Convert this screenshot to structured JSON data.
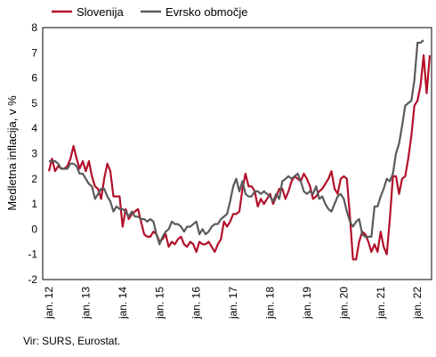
{
  "source_note": "Vir: SURS, Eurostat.",
  "chart_data": {
    "type": "line",
    "title": "",
    "xlabel": "",
    "ylabel": "Medletna inflacija, v %",
    "ylim": [
      -2,
      8
    ],
    "yticks": [
      -2,
      -1,
      0,
      1,
      2,
      3,
      4,
      5,
      6,
      7,
      8
    ],
    "x_tick_labels": [
      "jan. 12",
      "jan. 13",
      "jan. 14",
      "jan. 15",
      "jan. 16",
      "jan. 17",
      "jan. 18",
      "jan. 19",
      "jan. 20",
      "jan. 21",
      "jan. 22"
    ],
    "x_start": "2012-01",
    "x_end": "2022-06",
    "grid": false,
    "legend_position": "top-left",
    "series": [
      {
        "name": "Slovenija",
        "color": "#B3102A",
        "values": [
          2.3,
          2.8,
          2.3,
          2.5,
          2.4,
          2.4,
          2.5,
          2.8,
          3.3,
          2.8,
          2.4,
          2.7,
          2.3,
          2.7,
          2.1,
          1.7,
          1.6,
          1.2,
          2.0,
          2.6,
          2.3,
          1.3,
          1.3,
          1.3,
          0.1,
          0.8,
          0.4,
          0.6,
          0.7,
          0.8,
          0.3,
          -0.2,
          -0.3,
          -0.3,
          -0.1,
          -0.2,
          -0.5,
          -0.4,
          -0.2,
          -0.7,
          -0.5,
          -0.6,
          -0.4,
          -0.3,
          -0.6,
          -0.7,
          -0.5,
          -0.6,
          -0.9,
          -0.5,
          -0.6,
          -0.6,
          -0.5,
          -0.7,
          -0.9,
          -0.6,
          -0.4,
          0.3,
          0.1,
          0.3,
          0.6,
          0.6,
          0.7,
          1.6,
          2.2,
          1.7,
          1.7,
          1.5,
          0.9,
          1.2,
          1.0,
          1.2,
          1.4,
          1.0,
          1.3,
          1.6,
          1.6,
          1.2,
          1.5,
          1.9,
          2.1,
          2.0,
          1.9,
          2.2,
          2.0,
          1.7,
          1.2,
          1.3,
          1.5,
          1.6,
          1.8,
          2.0,
          2.3,
          1.6,
          1.4,
          2.0,
          2.1,
          2.0,
          0.5,
          -1.2,
          -1.2,
          -0.5,
          -0.1,
          -0.2,
          -0.5,
          -0.9,
          -0.6,
          -0.9,
          -0.1,
          -0.7,
          -1.0,
          0.4,
          2.1,
          2.1,
          1.4,
          2.0,
          2.1,
          2.8,
          3.7,
          4.9,
          5.1,
          5.7,
          6.9,
          5.4,
          6.9
        ]
      },
      {
        "name": "Evrsko območje",
        "color": "#5A5A5A",
        "values": [
          2.7,
          2.7,
          2.7,
          2.6,
          2.4,
          2.4,
          2.4,
          2.6,
          2.6,
          2.5,
          2.2,
          2.2,
          2.0,
          1.8,
          1.7,
          1.2,
          1.4,
          1.6,
          1.6,
          1.3,
          1.1,
          0.7,
          0.9,
          0.8,
          0.8,
          0.7,
          0.5,
          0.7,
          0.5,
          0.5,
          0.4,
          0.4,
          0.3,
          0.4,
          0.3,
          -0.2,
          -0.6,
          -0.3,
          -0.1,
          0.0,
          0.3,
          0.2,
          0.2,
          0.1,
          -0.1,
          0.1,
          0.1,
          0.2,
          0.3,
          -0.2,
          0.0,
          -0.2,
          -0.1,
          0.1,
          0.2,
          0.2,
          0.4,
          0.5,
          0.6,
          1.1,
          1.7,
          2.0,
          1.5,
          1.9,
          1.4,
          1.3,
          1.3,
          1.5,
          1.5,
          1.4,
          1.5,
          1.4,
          1.3,
          1.1,
          1.4,
          1.2,
          1.9,
          2.0,
          2.1,
          2.0,
          2.1,
          2.2,
          1.9,
          1.5,
          1.4,
          1.5,
          1.4,
          1.7,
          1.2,
          1.3,
          1.0,
          0.8,
          0.7,
          1.0,
          1.3,
          1.4,
          1.2,
          0.7,
          0.3,
          0.1,
          0.3,
          0.4,
          -0.2,
          -0.3,
          -0.3,
          -0.3,
          0.9,
          0.9,
          1.3,
          1.6,
          2.0,
          1.9,
          2.2,
          3.0,
          3.4,
          4.1,
          4.9,
          5.0,
          5.1,
          5.9,
          7.4,
          7.4,
          7.5
        ]
      }
    ]
  }
}
